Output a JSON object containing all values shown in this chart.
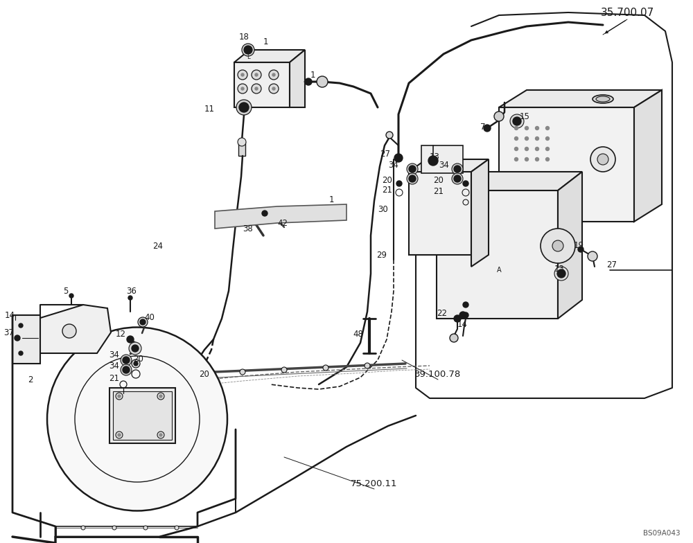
{
  "bg_color": "#ffffff",
  "lc": "#1a1a1a",
  "lw": 1.2,
  "fs": 8.5,
  "watermark": "BS09A043",
  "ref_label": "35.700.07",
  "ref2": "39.100.78",
  "ref3": "75.200.11"
}
